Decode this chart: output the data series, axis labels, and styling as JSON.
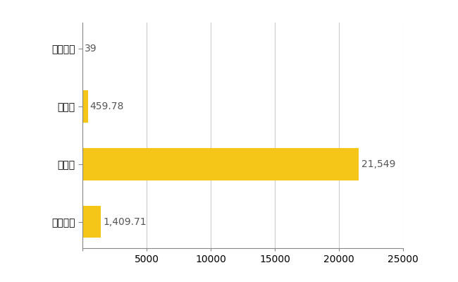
{
  "categories": [
    "中頓別町",
    "県平均",
    "県最大",
    "全国平均"
  ],
  "values": [
    39,
    459.78,
    21549,
    1409.71
  ],
  "labels": [
    "39",
    "459.78",
    "21,549",
    "1,409.71"
  ],
  "bar_color": "#F5C518",
  "background_color": "#ffffff",
  "grid_color": "#cccccc",
  "xlim": [
    0,
    25000
  ],
  "xticks": [
    0,
    5000,
    10000,
    15000,
    20000,
    25000
  ],
  "label_fontsize": 10,
  "tick_fontsize": 10,
  "bar_height": 0.55
}
